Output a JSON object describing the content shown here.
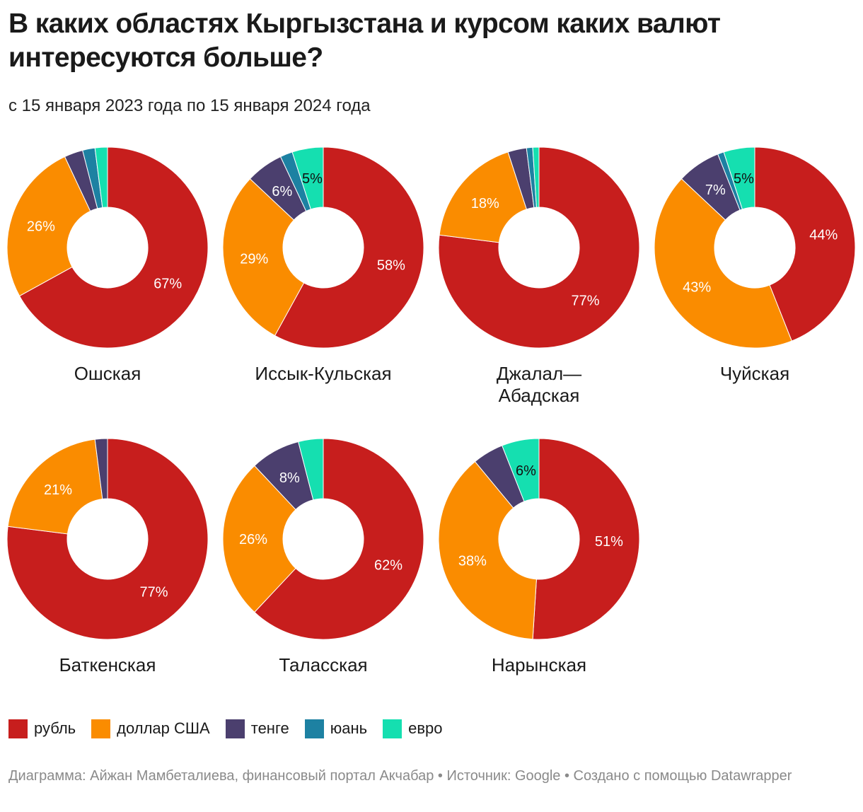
{
  "title": "В каких областях Кыргызстана и курсом каких валют интересуются больше?",
  "subtitle": "с 15 января 2023 года по 15 января 2024 года",
  "footer": "Диаграмма: Айжан Мамбеталиева, финансовый портал Акчабар • Источник: Google • Создано с помощью Datawrapper",
  "legend": [
    {
      "label": "рубль",
      "color": "#c71e1d"
    },
    {
      "label": "доллар США",
      "color": "#fa8c00"
    },
    {
      "label": "тенге",
      "color": "#4b3f6e"
    },
    {
      "label": "юань",
      "color": "#1d81a2"
    },
    {
      "label": "евро",
      "color": "#15dfb0"
    }
  ],
  "chart_data": {
    "type": "pie",
    "variant": "donut",
    "series_names": [
      "рубль",
      "доллар США",
      "тенге",
      "юань",
      "евро"
    ],
    "series_colors": [
      "#c71e1d",
      "#fa8c00",
      "#4b3f6e",
      "#1d81a2",
      "#15dfb0"
    ],
    "charts": [
      {
        "region": "Ошская",
        "values": [
          67,
          26,
          3,
          2,
          2
        ],
        "labels": [
          "67%",
          "26%",
          "",
          "",
          ""
        ]
      },
      {
        "region": "Иссык-Кульская",
        "values": [
          58,
          29,
          6,
          2,
          5
        ],
        "labels": [
          "58%",
          "29%",
          "6%",
          "",
          "5%"
        ]
      },
      {
        "region": "Джалал—\nАбадская",
        "values": [
          77,
          18,
          3,
          1,
          1
        ],
        "labels": [
          "77%",
          "18%",
          "",
          "",
          ""
        ]
      },
      {
        "region": "Чуйская",
        "values": [
          44,
          43,
          7,
          1,
          5
        ],
        "labels": [
          "44%",
          "43%",
          "7%",
          "",
          "5%"
        ]
      },
      {
        "region": "Баткенская",
        "values": [
          77,
          21,
          2,
          0,
          0
        ],
        "labels": [
          "77%",
          "21%",
          "",
          "",
          ""
        ]
      },
      {
        "region": "Таласская",
        "values": [
          62,
          26,
          8,
          0,
          4
        ],
        "labels": [
          "62%",
          "26%",
          "8%",
          "",
          ""
        ]
      },
      {
        "region": "Нарынская",
        "values": [
          51,
          38,
          5,
          0,
          6
        ],
        "labels": [
          "51%",
          "38%",
          "",
          "",
          "6%"
        ]
      }
    ]
  }
}
